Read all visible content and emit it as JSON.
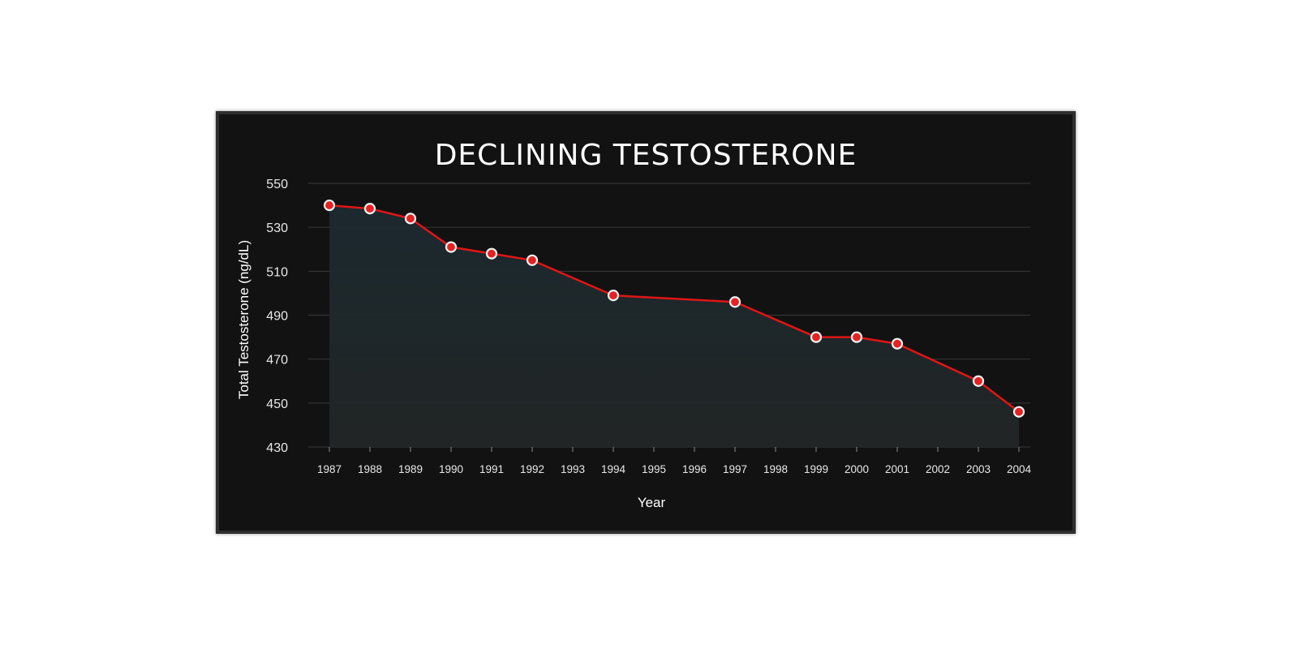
{
  "chart_data": {
    "type": "area",
    "title": "DECLINING TESTOSTERONE",
    "xlabel": "Year",
    "ylabel": "Total Testosterone (ng/dL)",
    "ylim": [
      430,
      550
    ],
    "yticks": [
      430,
      450,
      470,
      490,
      510,
      530,
      550
    ],
    "grid": true,
    "x_categories": [
      "1987",
      "1988",
      "1989",
      "1990",
      "1991",
      "1992",
      "1993",
      "1994",
      "1995",
      "1996",
      "1997",
      "1998",
      "1999",
      "2000",
      "2001",
      "2002",
      "2003",
      "2004"
    ],
    "series": [
      {
        "x": [
          "1987",
          "1988",
          "1989",
          "1990",
          "1991",
          "1992",
          "1994",
          "1997",
          "1999",
          "2000",
          "2001",
          "2003",
          "2004"
        ],
        "values": [
          540,
          538.5,
          534,
          521,
          518,
          515,
          499,
          496,
          480,
          480,
          477,
          460,
          446
        ]
      }
    ],
    "colors": {
      "line": "#e01515",
      "marker_fill": "#e52222",
      "marker_stroke": "#f2f2f2",
      "area": "#1c2a30",
      "background": "#121212"
    }
  }
}
